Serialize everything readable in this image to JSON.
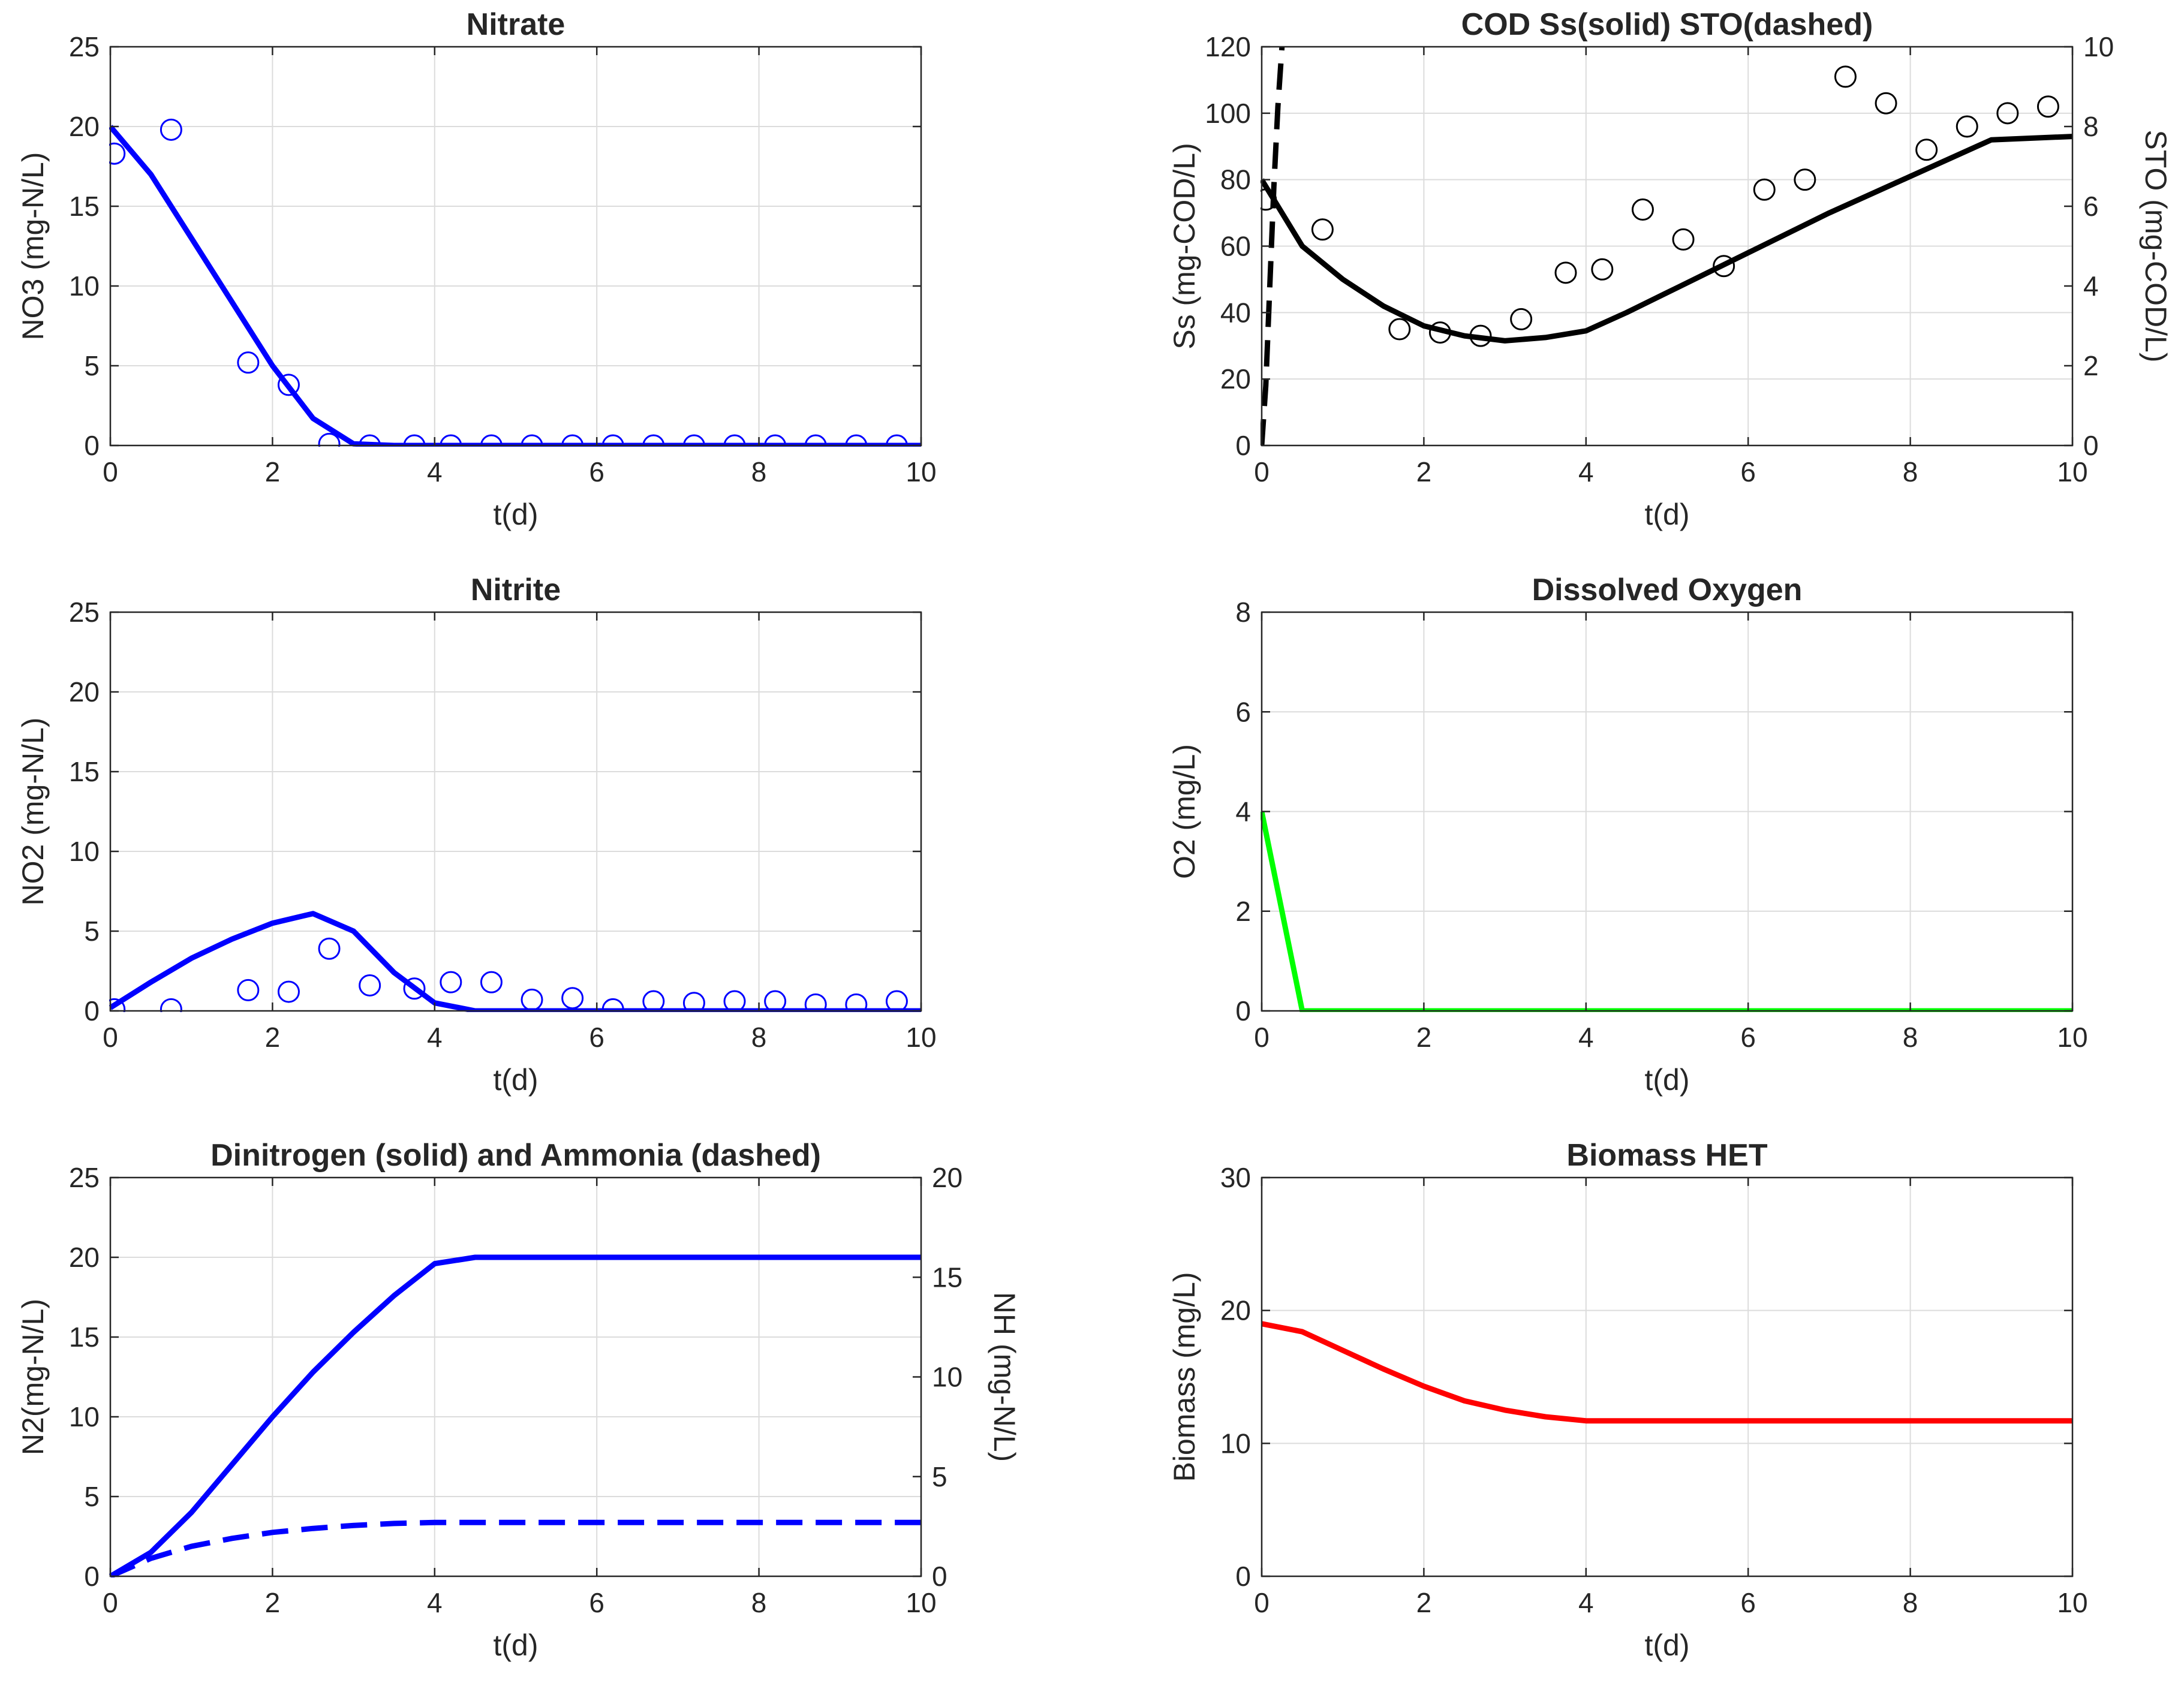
{
  "chart_data": [
    {
      "type": "line",
      "title": "Nitrate",
      "xlabel": "t(d)",
      "ylabel": "NO3 (mg-N/L)",
      "xlim": [
        0,
        10
      ],
      "ylim": [
        0,
        25
      ],
      "xticks": [
        0,
        2,
        4,
        6,
        8,
        10
      ],
      "yticks": [
        0,
        5,
        10,
        15,
        20,
        25
      ],
      "series": [
        {
          "name": "NO3 model",
          "style": "line",
          "color": "#0000ff",
          "x": [
            0,
            0.5,
            1,
            1.5,
            2,
            2.5,
            3,
            3.5,
            4,
            5,
            6,
            7,
            8,
            9,
            10
          ],
          "y": [
            20,
            17,
            13,
            9,
            5,
            1.7,
            0.1,
            0,
            0,
            0,
            0,
            0,
            0,
            0,
            0
          ]
        },
        {
          "name": "NO3 measured",
          "style": "marker",
          "color": "#0000ff",
          "x": [
            0.05,
            0.75,
            1.7,
            2.2,
            2.7,
            3.2,
            3.75,
            4.2,
            4.7,
            5.2,
            5.7,
            6.2,
            6.7,
            7.2,
            7.7,
            8.2,
            8.7,
            9.2,
            9.7
          ],
          "y": [
            18.3,
            19.8,
            5.2,
            3.8,
            0.1,
            0,
            0,
            0,
            0,
            0,
            0,
            0,
            0,
            0,
            0,
            0,
            0,
            0,
            0
          ]
        }
      ]
    },
    {
      "type": "line",
      "title": "COD Ss(solid) STO(dashed)",
      "xlabel": "t(d)",
      "ylabel": "Ss (mg-COD/L)",
      "ylabel_right": "STO (mg-COD/L)",
      "xlim": [
        0,
        10
      ],
      "ylim": [
        0,
        120
      ],
      "ylim_right": [
        0,
        10
      ],
      "xticks": [
        0,
        2,
        4,
        6,
        8,
        10
      ],
      "yticks": [
        0,
        20,
        40,
        60,
        80,
        100,
        120
      ],
      "yticks_right": [
        0,
        2,
        4,
        6,
        8,
        10
      ],
      "series": [
        {
          "name": "Ss model",
          "style": "line",
          "color": "#000000",
          "x": [
            0,
            0.5,
            1,
            1.5,
            2,
            2.5,
            3,
            3.5,
            4,
            4.5,
            5,
            6,
            7,
            8,
            9,
            10
          ],
          "y": [
            80,
            60,
            50,
            42,
            36,
            33,
            31.5,
            32.5,
            34.5,
            40,
            46,
            58,
            70,
            81,
            92,
            93
          ]
        },
        {
          "name": "STO model",
          "style": "dashed",
          "color": "#000000",
          "axis": "right",
          "x": [
            0,
            0.05,
            0.1,
            0.15,
            0.2,
            0.25
          ],
          "y": [
            0,
            1.5,
            4,
            6.5,
            8.5,
            10
          ]
        },
        {
          "name": "Ss measured",
          "style": "marker",
          "color": "#000000",
          "x": [
            0.05,
            0.75,
            1.7,
            2.2,
            2.7,
            3.2,
            3.75,
            4.2,
            4.7,
            5.2,
            5.7,
            6.2,
            6.7,
            7.2,
            7.7,
            8.2,
            8.7,
            9.2,
            9.7
          ],
          "y": [
            74,
            65,
            35,
            34,
            33,
            38,
            52,
            53,
            71,
            62,
            54,
            77,
            80,
            111,
            103,
            89,
            96,
            100,
            102
          ]
        }
      ]
    },
    {
      "type": "line",
      "title": "Nitrite",
      "xlabel": "t(d)",
      "ylabel": "NO2 (mg-N/L)",
      "xlim": [
        0,
        10
      ],
      "ylim": [
        0,
        25
      ],
      "xticks": [
        0,
        2,
        4,
        6,
        8,
        10
      ],
      "yticks": [
        0,
        5,
        10,
        15,
        20,
        25
      ],
      "series": [
        {
          "name": "NO2 model",
          "style": "line",
          "color": "#0000ff",
          "x": [
            0,
            0.5,
            1,
            1.5,
            2,
            2.5,
            3,
            3.5,
            4,
            4.5,
            5,
            6,
            7,
            8,
            9,
            10
          ],
          "y": [
            0.2,
            1.8,
            3.3,
            4.5,
            5.5,
            6.1,
            5,
            2.4,
            0.5,
            0,
            0,
            0,
            0,
            0,
            0,
            0
          ]
        },
        {
          "name": "NO2 measured",
          "style": "marker",
          "color": "#0000ff",
          "x": [
            0.05,
            0.75,
            1.7,
            2.2,
            2.7,
            3.2,
            3.75,
            4.2,
            4.7,
            5.2,
            5.7,
            6.2,
            6.7,
            7.2,
            7.7,
            8.2,
            8.7,
            9.2,
            9.7
          ],
          "y": [
            0.1,
            0.1,
            1.3,
            1.2,
            3.9,
            1.6,
            1.4,
            1.8,
            1.8,
            0.7,
            0.8,
            0.1,
            0.6,
            0.5,
            0.6,
            0.6,
            0.4,
            0.4,
            0.6
          ]
        }
      ]
    },
    {
      "type": "line",
      "title": "Dissolved Oxygen",
      "xlabel": "t(d)",
      "ylabel": "O2 (mg/L)",
      "xlim": [
        0,
        10
      ],
      "ylim": [
        0,
        8
      ],
      "xticks": [
        0,
        2,
        4,
        6,
        8,
        10
      ],
      "yticks": [
        0,
        2,
        4,
        6,
        8
      ],
      "series": [
        {
          "name": "O2 model",
          "style": "line",
          "color": "#00ff00",
          "x": [
            0,
            0.5,
            10
          ],
          "y": [
            4,
            0,
            0
          ]
        }
      ]
    },
    {
      "type": "line",
      "title": "Dinitrogen (solid) and Ammonia (dashed)",
      "xlabel": "t(d)",
      "ylabel": "N2(mg-N/L)",
      "ylabel_right": "NH (mg-N/L)",
      "xlim": [
        0,
        10
      ],
      "ylim": [
        0,
        25
      ],
      "ylim_right": [
        0,
        20
      ],
      "xticks": [
        0,
        2,
        4,
        6,
        8,
        10
      ],
      "yticks": [
        0,
        5,
        10,
        15,
        20,
        25
      ],
      "yticks_right": [
        0,
        5,
        10,
        15,
        20
      ],
      "series": [
        {
          "name": "N2 model",
          "style": "line",
          "color": "#0000ff",
          "x": [
            0,
            0.5,
            1,
            1.5,
            2,
            2.5,
            3,
            3.5,
            4,
            4.5,
            5,
            10
          ],
          "y": [
            0,
            1.5,
            4,
            7,
            10,
            12.8,
            15.3,
            17.6,
            19.6,
            20,
            20,
            20
          ]
        },
        {
          "name": "NH model",
          "style": "dashed",
          "color": "#0000ff",
          "axis": "right",
          "x": [
            0,
            0.5,
            1,
            1.5,
            2,
            2.5,
            3,
            3.5,
            4,
            5,
            6,
            7,
            8,
            9,
            10
          ],
          "y": [
            0,
            0.9,
            1.5,
            1.9,
            2.2,
            2.4,
            2.55,
            2.65,
            2.7,
            2.7,
            2.7,
            2.7,
            2.7,
            2.7,
            2.7
          ]
        }
      ]
    },
    {
      "type": "line",
      "title": "Biomass HET",
      "xlabel": "t(d)",
      "ylabel": "Biomass (mg/L)",
      "xlim": [
        0,
        10
      ],
      "ylim": [
        0,
        30
      ],
      "xticks": [
        0,
        2,
        4,
        6,
        8,
        10
      ],
      "yticks": [
        0,
        10,
        20,
        30
      ],
      "series": [
        {
          "name": "Biomass model",
          "style": "line",
          "color": "#ff0000",
          "x": [
            0,
            0.5,
            1,
            1.5,
            2,
            2.5,
            3,
            3.5,
            4,
            5,
            6,
            7,
            8,
            9,
            10
          ],
          "y": [
            19,
            18.4,
            17,
            15.6,
            14.3,
            13.2,
            12.5,
            12,
            11.7,
            11.7,
            11.7,
            11.7,
            11.7,
            11.7,
            11.7
          ]
        }
      ]
    }
  ]
}
